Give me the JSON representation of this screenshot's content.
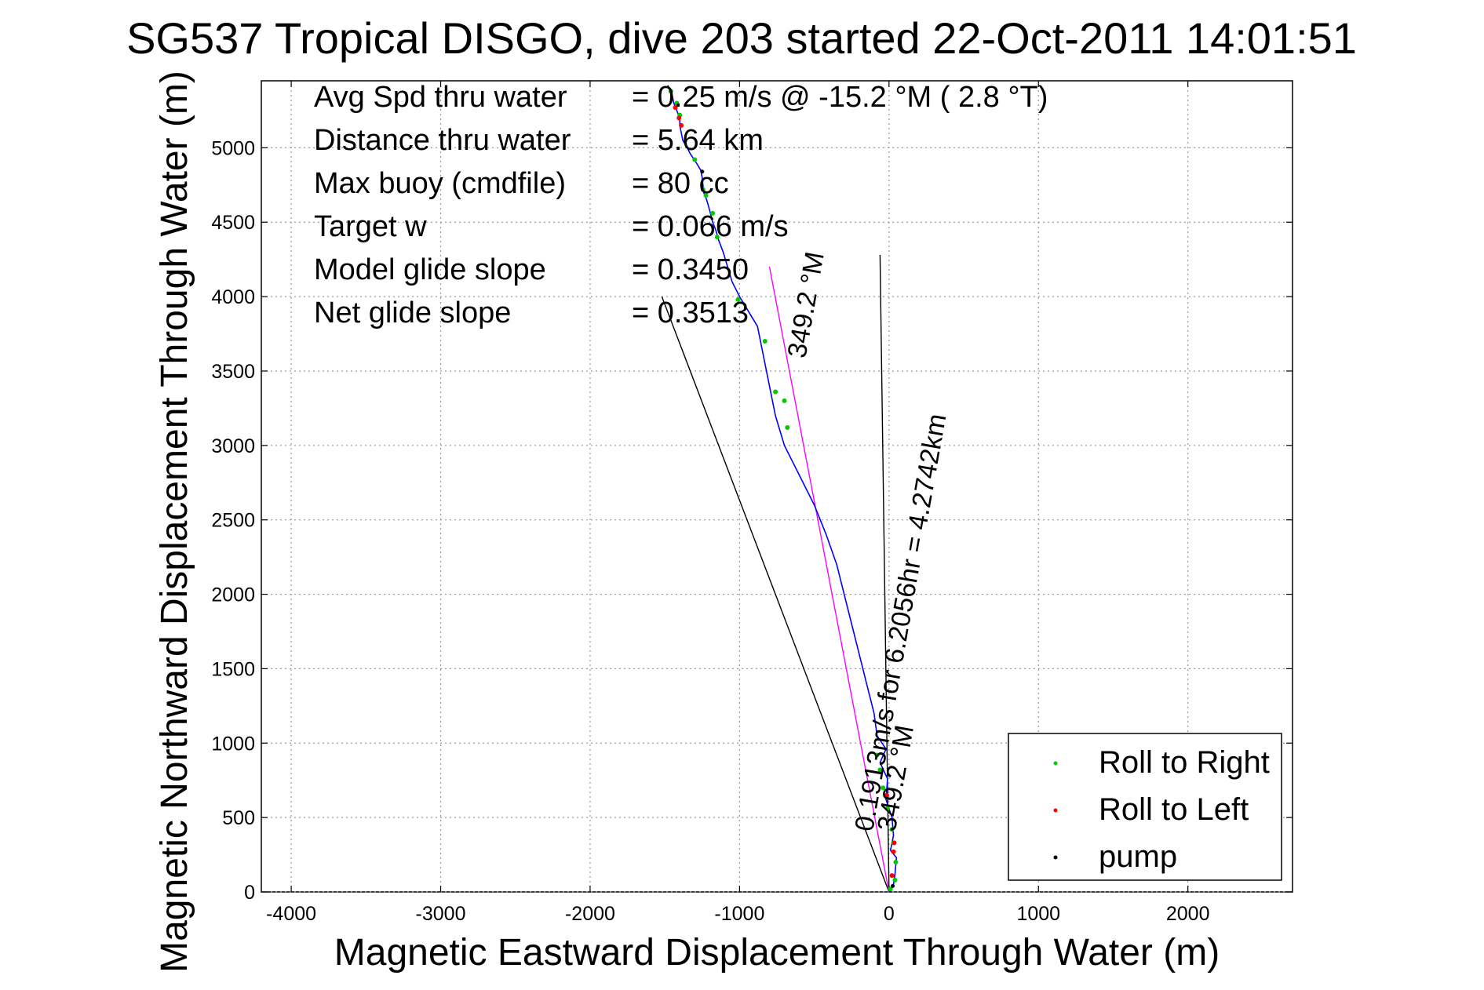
{
  "chart_data": {
    "type": "line",
    "title": "SG537 Tropical DISGO, dive 203 started 22-Oct-2011 14:01:51",
    "xlabel": "Magnetic Eastward Displacement Through Water (m)",
    "ylabel": "Magnetic Northward Displacement Through Water (m)",
    "xlim": [
      -4200,
      2700
    ],
    "ylim": [
      0,
      5450
    ],
    "x_ticks": [
      -4000,
      -3000,
      -2000,
      -1000,
      0,
      1000,
      2000
    ],
    "x_tick_labels": [
      "-4000",
      "-3000",
      "-2000",
      "-1000",
      "0",
      "1000",
      "2000"
    ],
    "y_ticks": [
      0,
      500,
      1000,
      1500,
      2000,
      2500,
      3000,
      3500,
      4000,
      4500,
      5000
    ],
    "y_tick_labels": [
      "0",
      "500",
      "1000",
      "1500",
      "2000",
      "2500",
      "3000",
      "3500",
      "4000",
      "4500",
      "5000"
    ],
    "grid": true,
    "legend_position": "bottom-right",
    "stats": [
      {
        "label": "Avg Spd thru water",
        "value": "=  0.25 m/s @ -15.2 °M (  2.8 °T)"
      },
      {
        "label": "Distance thru water",
        "value": "=  5.64 km"
      },
      {
        "label": "Max buoy (cmdfile)",
        "value": "= 80 cc"
      },
      {
        "label": "Target w",
        "value": "= 0.066 m/s"
      },
      {
        "label": "Model glide slope",
        "value": "= 0.3450"
      },
      {
        "label": "Net glide slope",
        "value": "= 0.3513"
      }
    ],
    "annotations": [
      {
        "text": "0.1913m/s for 6.2056hr = 4.2742km",
        "x": -110,
        "y": 400
      },
      {
        "text": "349.2 °M",
        "x": 40,
        "y": 400
      },
      {
        "text": "349.2 °M",
        "x": -560,
        "y": 3580
      }
    ],
    "track": {
      "name": "",
      "color": "#0000ff",
      "x": [
        0,
        30,
        40,
        50,
        10,
        30,
        20,
        -20,
        -10,
        -60,
        -20,
        -80,
        -100,
        -150,
        -200,
        -250,
        -300,
        -350,
        -420,
        -500,
        -600,
        -700,
        -760,
        -800,
        -820,
        -850,
        -880,
        -940,
        -1000,
        -1050,
        -1080,
        -1110,
        -1140,
        -1160,
        -1180,
        -1200,
        -1220,
        -1240,
        -1250,
        -1260,
        -1290,
        -1330,
        -1350,
        -1380,
        -1390,
        -1400,
        -1400,
        -1420,
        -1440,
        -1450,
        -1480
      ],
      "y": [
        0,
        50,
        120,
        230,
        280,
        380,
        500,
        620,
        760,
        870,
        960,
        1050,
        1200,
        1400,
        1600,
        1800,
        2000,
        2200,
        2400,
        2600,
        2800,
        3000,
        3200,
        3400,
        3500,
        3650,
        3800,
        3900,
        4000,
        4100,
        4200,
        4300,
        4380,
        4450,
        4500,
        4580,
        4650,
        4700,
        4800,
        4850,
        4900,
        4960,
        5000,
        5050,
        5100,
        5150,
        5200,
        5250,
        5300,
        5350,
        5420
      ]
    },
    "current_line": {
      "name": "",
      "color": "#ff00ff",
      "x": [
        0,
        -800
      ],
      "y": [
        0,
        4200
      ]
    },
    "extra_lines": [
      {
        "name": "",
        "color": "#000000",
        "x": [
          0,
          -1520
        ],
        "y": [
          0,
          4000
        ]
      },
      {
        "name": "",
        "color": "#000000",
        "x": [
          0,
          -60
        ],
        "y": [
          0,
          4280
        ]
      }
    ],
    "green_points": {
      "x": [
        10,
        40,
        45,
        30,
        20,
        -10,
        -40,
        -60,
        -80,
        -680,
        -700,
        -760,
        -830,
        -1010,
        -1150,
        -1180,
        -1225,
        -1245,
        -1300,
        -1400,
        -1420,
        -1460
      ],
      "y": [
        20,
        80,
        200,
        330,
        420,
        560,
        700,
        820,
        920,
        3120,
        3300,
        3360,
        3700,
        3980,
        4400,
        4560,
        4680,
        4720,
        4920,
        5220,
        5300,
        5380
      ]
    },
    "red_points": {
      "x": [
        20,
        30,
        35,
        -15,
        -1390,
        -1405,
        -1430
      ],
      "y": [
        110,
        270,
        330,
        650,
        5150,
        5200,
        5270
      ]
    },
    "pump_points": {
      "x": [
        25,
        -1250
      ],
      "y": [
        40,
        4840
      ]
    },
    "legend": [
      {
        "label": "Roll to Right",
        "color": "#00cc00"
      },
      {
        "label": "Roll to Left",
        "color": "#ff0000"
      },
      {
        "label": "pump",
        "color": "#000000"
      }
    ]
  }
}
